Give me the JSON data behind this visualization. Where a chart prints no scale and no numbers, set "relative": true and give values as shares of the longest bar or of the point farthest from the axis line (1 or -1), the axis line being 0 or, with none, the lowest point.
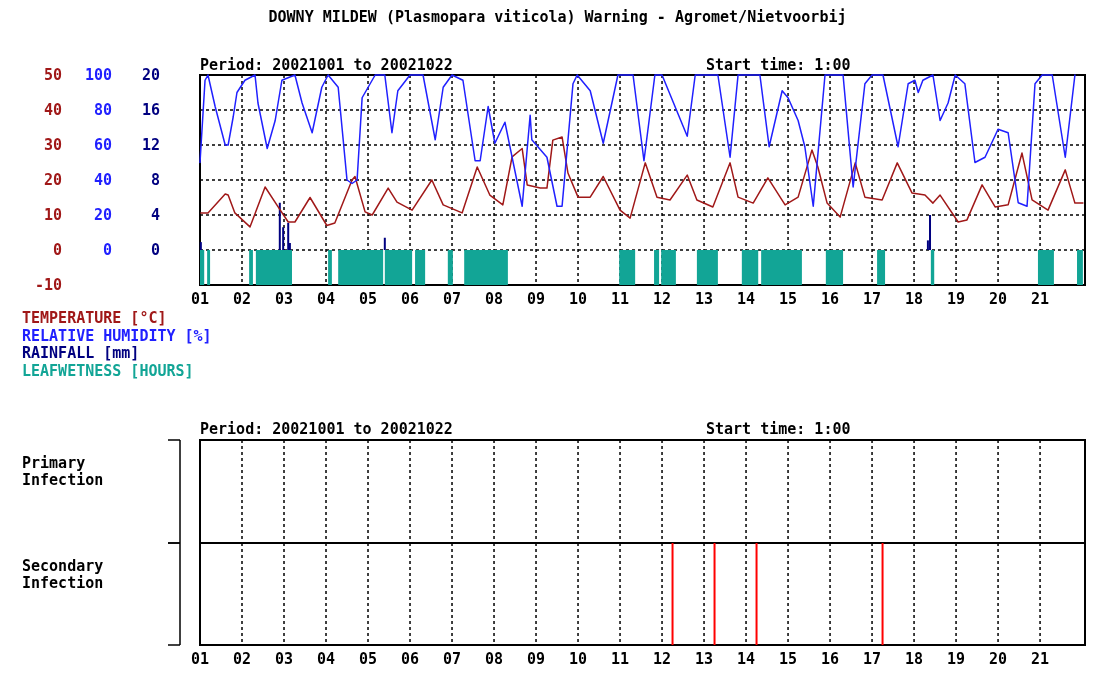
{
  "chart_data": [
    {
      "type": "line",
      "title": "DOWNY MILDEW (Plasmopara viticola) Warning - Agromet/Nietvoorbij",
      "subtitle": "Period: 20021001 to 20021022",
      "annotations": [
        "Start time: 1:00"
      ],
      "xlim": [
        1,
        22.07
      ],
      "xticks": [
        {
          "value": 1,
          "label": "01"
        },
        {
          "value": 2,
          "label": "02"
        },
        {
          "value": 3,
          "label": "03"
        },
        {
          "value": 4,
          "label": "04"
        },
        {
          "value": 5,
          "label": "05"
        },
        {
          "value": 6,
          "label": "06"
        },
        {
          "value": 7,
          "label": "07"
        },
        {
          "value": 8,
          "label": "08"
        },
        {
          "value": 9,
          "label": "09"
        },
        {
          "value": 10,
          "label": "10"
        },
        {
          "value": 11,
          "label": "11"
        },
        {
          "value": 12,
          "label": "12"
        },
        {
          "value": 13,
          "label": "13"
        },
        {
          "value": 14,
          "label": "14"
        },
        {
          "value": 15,
          "label": "15"
        },
        {
          "value": 16,
          "label": "16"
        },
        {
          "value": 17,
          "label": "17"
        },
        {
          "value": 18,
          "label": "18"
        },
        {
          "value": 19,
          "label": "19"
        },
        {
          "value": 20,
          "label": "20"
        },
        {
          "value": 21,
          "label": "21"
        }
      ],
      "ylim": [
        -10,
        50
      ],
      "yticks": [
        -10,
        0,
        10,
        20,
        30,
        40,
        50
      ],
      "y2lim": [
        -20,
        100
      ],
      "y2ticks": [
        0,
        20,
        40,
        60,
        80,
        100
      ],
      "y3lim": [
        -4,
        20
      ],
      "y3ticks": [
        0,
        4,
        8,
        12,
        16,
        20
      ],
      "grid": true,
      "legend": "bottom left",
      "series": [
        {
          "name": "TEMPERATURE [°C]",
          "axis": "y",
          "color": "#a01818",
          "x": [
            1.02,
            1.19,
            1.6,
            1.67,
            1.83,
            2.19,
            2.55,
            2.86,
            3.1,
            3.26,
            3.62,
            4.02,
            4.21,
            4.62,
            4.69,
            4.93,
            5.1,
            5.48,
            5.69,
            6.05,
            6.52,
            6.79,
            7.24,
            7.6,
            7.9,
            8.21,
            8.43,
            8.67,
            8.79,
            9.1,
            9.26,
            9.4,
            9.62,
            9.76,
            10.0,
            10.29,
            10.6,
            11.0,
            11.24,
            11.6,
            11.88,
            12.19,
            12.6,
            12.83,
            13.21,
            13.62,
            13.81,
            14.17,
            14.52,
            14.93,
            15.24,
            15.57,
            15.71,
            15.93,
            16.24,
            16.6,
            16.83,
            17.24,
            17.6,
            17.95,
            18.26,
            18.45,
            18.62,
            19.05,
            19.26,
            19.62,
            19.93,
            20.24,
            20.57,
            20.81,
            21.19,
            21.6,
            21.83,
            22.02
          ],
          "values": [
            10.6,
            10.6,
            16,
            15.7,
            10.6,
            6.6,
            18,
            12.3,
            8,
            8,
            15,
            7,
            7.7,
            20,
            21,
            10.9,
            10,
            17.7,
            13.7,
            11.4,
            20,
            12.9,
            10.6,
            23.7,
            15.7,
            12.9,
            26.6,
            29,
            18.6,
            17.7,
            17.7,
            31.4,
            32.3,
            22,
            15.1,
            15.1,
            21,
            11.4,
            9.1,
            24.9,
            15.1,
            14.3,
            21.4,
            14.3,
            12.3,
            24.9,
            15.1,
            13.4,
            20.6,
            12.9,
            15.1,
            28.6,
            23.7,
            13.4,
            9.4,
            24.9,
            15.1,
            14.3,
            24.9,
            16.3,
            15.7,
            13.4,
            15.7,
            8,
            8.6,
            18.6,
            12.3,
            12.9,
            27.7,
            14.3,
            11.4,
            22.9,
            13.4,
            13.4
          ]
        },
        {
          "name": "RELATIVE HUMIDITY [%]",
          "axis": "y2",
          "color": "#2020ff",
          "x": [
            1.0,
            1.12,
            1.19,
            1.36,
            1.6,
            1.67,
            1.79,
            1.88,
            2.07,
            2.31,
            2.38,
            2.6,
            2.79,
            2.95,
            3.26,
            3.43,
            3.67,
            3.9,
            4.05,
            4.29,
            4.5,
            4.62,
            4.74,
            4.86,
            5.17,
            5.4,
            5.57,
            5.71,
            6.0,
            6.31,
            6.6,
            6.79,
            7.0,
            7.26,
            7.55,
            7.67,
            7.86,
            8.02,
            8.26,
            8.67,
            8.86,
            8.9,
            9.26,
            9.5,
            9.62,
            9.88,
            9.98,
            10.29,
            10.6,
            10.95,
            11.31,
            11.57,
            11.83,
            12.0,
            12.6,
            12.79,
            13.33,
            13.62,
            13.81,
            14.33,
            14.55,
            14.86,
            15.0,
            15.24,
            15.4,
            15.6,
            15.88,
            16.31,
            16.55,
            16.83,
            17.0,
            17.26,
            17.62,
            17.86,
            18.02,
            18.1,
            18.21,
            18.45,
            18.62,
            18.81,
            18.98,
            19.21,
            19.45,
            19.69,
            20.0,
            20.24,
            20.48,
            20.69,
            20.88,
            21.05,
            21.29,
            21.6,
            21.83
          ],
          "values": [
            50,
            97,
            100,
            82,
            60,
            60,
            76,
            90,
            97,
            100,
            84,
            58,
            74,
            97,
            100,
            84,
            67,
            93,
            100,
            93,
            40,
            38,
            40,
            87,
            100,
            100,
            67,
            91,
            100,
            100,
            63,
            93,
            100,
            97,
            51,
            51,
            82,
            61,
            73,
            25,
            77,
            63,
            53,
            25,
            25,
            95,
            100,
            91,
            61,
            100,
            100,
            51,
            100,
            100,
            65,
            100,
            100,
            53,
            100,
            100,
            59,
            91,
            87,
            74,
            59,
            25,
            100,
            100,
            36,
            95,
            100,
            100,
            59,
            95,
            97,
            90,
            97,
            100,
            74,
            84,
            100,
            95,
            50,
            53,
            69,
            67,
            27,
            25,
            95,
            100,
            100,
            53,
            100
          ]
        },
        {
          "name": "RAINFALL [mm]",
          "type": "bar",
          "axis": "y3",
          "color": "#000080",
          "x": [
            1.02,
            2.9,
            2.98,
            3.1,
            3.14,
            5.4,
            18.33,
            18.38
          ],
          "values": [
            0.9,
            5.4,
            2.6,
            3.1,
            0.8,
            1.4,
            1.1,
            4.0
          ]
        },
        {
          "name": "LEAFWETNESS [HOURS]",
          "type": "area",
          "axis": "y",
          "color": "#12a596",
          "x": [
            1.0,
            1.0,
            1.1,
            1.1,
            1.17,
            1.17,
            1.24,
            1.24,
            2.17,
            2.17,
            2.26,
            2.26,
            2.33,
            2.33,
            3.19,
            3.19,
            4.05,
            4.05,
            4.14,
            4.14,
            4.29,
            4.29,
            5.36,
            5.36,
            5.4,
            5.4,
            6.05,
            6.05,
            6.12,
            6.12,
            6.36,
            6.36,
            6.9,
            6.9,
            7.02,
            7.02,
            7.29,
            7.29,
            8.33,
            8.33,
            10.98,
            10.98,
            11.36,
            11.36,
            11.81,
            11.81,
            11.93,
            11.93,
            11.98,
            11.98,
            12.33,
            12.33,
            12.83,
            12.83,
            13.33,
            13.33,
            13.9,
            13.9,
            14.29,
            14.29,
            14.36,
            14.36,
            15.33,
            15.33,
            15.9,
            15.9,
            16.31,
            16.31,
            17.12,
            17.12,
            17.31,
            17.31,
            18.4,
            18.4,
            18.48,
            18.48,
            20.95,
            20.95,
            21.33,
            21.33,
            21.88,
            21.88,
            22.02,
            22.02
          ],
          "values": [
            -10,
            0,
            0,
            -10,
            -10,
            0,
            0,
            -10,
            -10,
            0,
            0,
            -10,
            -10,
            0,
            0,
            -10,
            -10,
            0,
            0,
            -10,
            -10,
            0,
            0,
            -10,
            -10,
            0,
            0,
            -10,
            -10,
            0,
            0,
            -10,
            -10,
            0,
            0,
            -10,
            -10,
            0,
            0,
            -10,
            -10,
            0,
            0,
            -10,
            -10,
            0,
            0,
            -10,
            -10,
            0,
            0,
            -10,
            -10,
            0,
            0,
            -10,
            -10,
            0,
            0,
            -10,
            -10,
            0,
            0,
            -10,
            -10,
            0,
            0,
            -10,
            -10,
            0,
            0,
            -10,
            -10,
            0,
            0,
            -10,
            -10,
            0,
            0,
            -10,
            -10,
            0,
            0,
            -10
          ]
        }
      ]
    },
    {
      "type": "other",
      "subtitle": "Period: 20021001 to 20021022",
      "annotations": [
        "Start time: 1:00"
      ],
      "ylabel": "Primary Infection"
    },
    {
      "type": "bar",
      "ylabel": "Secondary Infection",
      "relative": true,
      "xlim": [
        1,
        22.07
      ],
      "xticks": [
        {
          "value": 1,
          "label": "01"
        },
        {
          "value": 2,
          "label": "02"
        },
        {
          "value": 3,
          "label": "03"
        },
        {
          "value": 4,
          "label": "04"
        },
        {
          "value": 5,
          "label": "05"
        },
        {
          "value": 6,
          "label": "06"
        },
        {
          "value": 7,
          "label": "07"
        },
        {
          "value": 8,
          "label": "08"
        },
        {
          "value": 9,
          "label": "09"
        },
        {
          "value": 10,
          "label": "10"
        },
        {
          "value": 11,
          "label": "11"
        },
        {
          "value": 12,
          "label": "12"
        },
        {
          "value": 13,
          "label": "13"
        },
        {
          "value": 14,
          "label": "14"
        },
        {
          "value": 15,
          "label": "15"
        },
        {
          "value": 16,
          "label": "16"
        },
        {
          "value": 17,
          "label": "17"
        },
        {
          "value": 18,
          "label": "18"
        },
        {
          "value": 19,
          "label": "19"
        },
        {
          "value": 20,
          "label": "20"
        },
        {
          "value": 21,
          "label": "21"
        }
      ],
      "grid": "x",
      "series": [
        {
          "color": "#ff0000",
          "x": [
            12.25,
            13.25,
            14.25,
            17.25
          ],
          "values": [
            1,
            1,
            1,
            1
          ]
        }
      ]
    }
  ]
}
